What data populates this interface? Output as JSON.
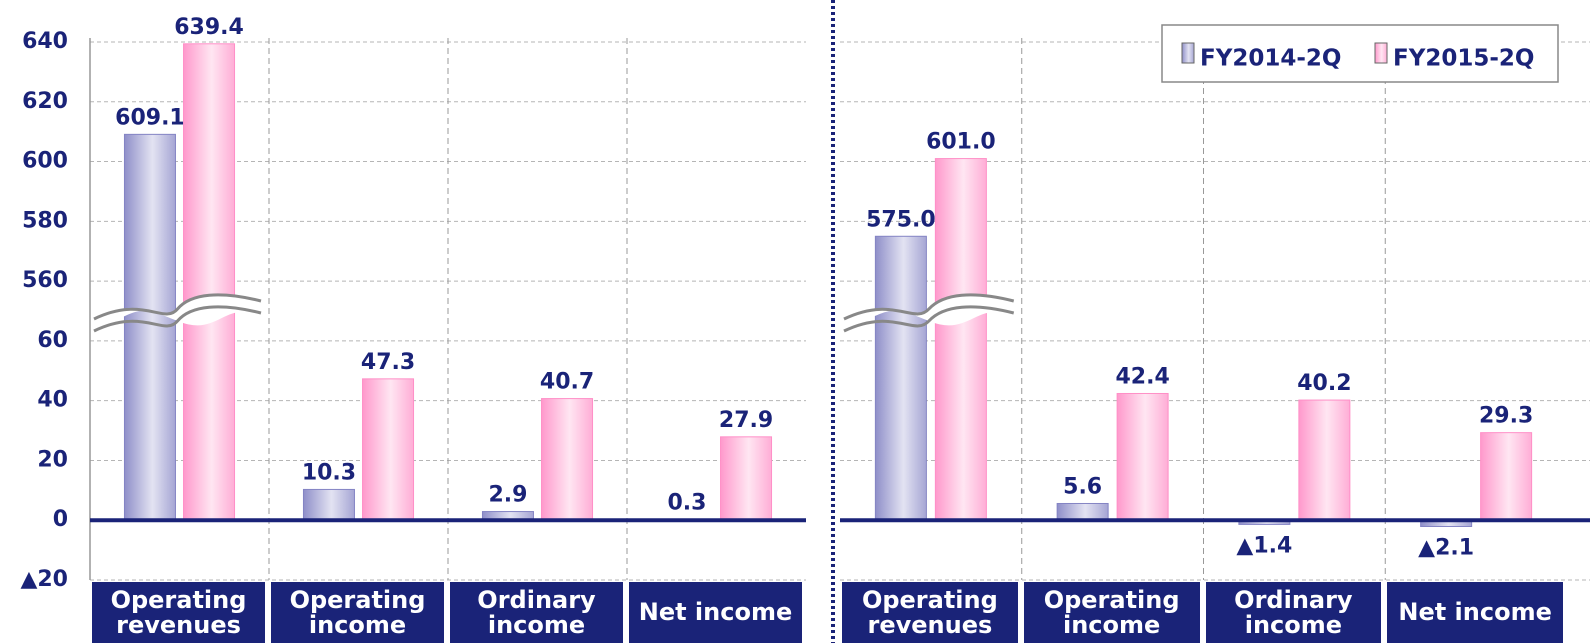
{
  "chart_data": [
    {
      "type": "bar",
      "categories": [
        "Operating revenues",
        "Operating income",
        "Ordinary income",
        "Net income"
      ],
      "series": [
        {
          "color": "#8f8fc9",
          "values": [
            609.1,
            10.3,
            2.9,
            0.3
          ],
          "value_labels": [
            "609.1",
            "10.3",
            "2.9",
            "0.3"
          ]
        },
        {
          "color": "#ff99cc",
          "values": [
            639.4,
            47.3,
            40.7,
            27.9
          ],
          "value_labels": [
            "639.4",
            "47.3",
            "40.7",
            "27.9"
          ]
        }
      ],
      "ylim": [
        -20,
        640
      ],
      "yticks": [
        {
          "value": -20,
          "label": "▲20"
        },
        0,
        20,
        40,
        60,
        560,
        580,
        600,
        620,
        640
      ],
      "grid": true
    },
    {
      "type": "bar",
      "categories": [
        "Operating revenues",
        "Operating income",
        "Ordinary income",
        "Net income"
      ],
      "series": [
        {
          "name": "FY2014-2Q",
          "color": "#8f8fc9",
          "values": [
            575.0,
            5.6,
            -1.4,
            -2.1
          ],
          "value_labels": [
            "575.0",
            "5.6",
            "▲1.4",
            "▲2.1"
          ]
        },
        {
          "name": "FY2015-2Q",
          "color": "#ff99cc",
          "values": [
            601.0,
            42.4,
            40.2,
            29.3
          ],
          "value_labels": [
            "601.0",
            "42.4",
            "40.2",
            "29.3"
          ]
        }
      ],
      "ylim": [
        -20,
        640
      ],
      "yticks": [
        -20,
        0,
        20,
        40,
        60,
        560,
        580,
        600,
        620,
        640
      ],
      "grid": true,
      "legend": "top-right"
    }
  ]
}
